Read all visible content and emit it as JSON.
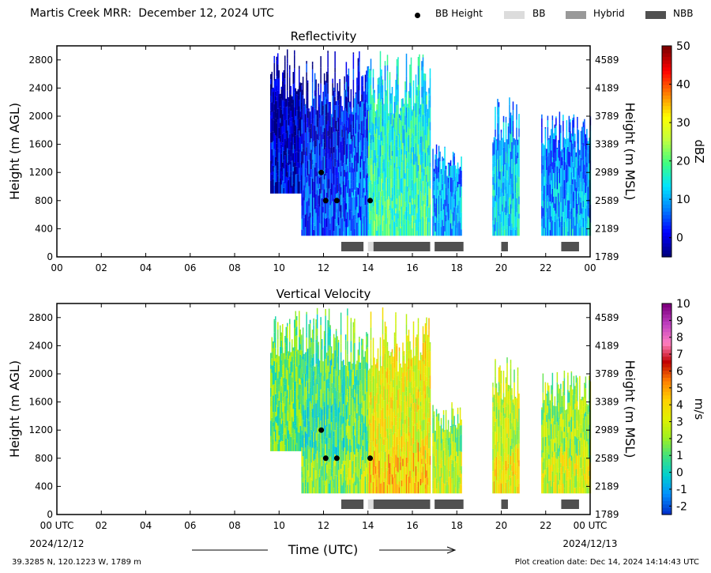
{
  "title": "Martis Creek MRR:  December 12, 2024 UTC",
  "legend": [
    {
      "label": "BB Height",
      "type": "dot",
      "color": "#000000"
    },
    {
      "label": "BB",
      "type": "swatch",
      "color": "#dcdcdc"
    },
    {
      "label": "Hybrid",
      "type": "swatch",
      "color": "#999999"
    },
    {
      "label": "NBB",
      "type": "swatch",
      "color": "#505050"
    }
  ],
  "chart_data": [
    {
      "type": "heatmap",
      "title": "Reflectivity",
      "xlabel": "",
      "ylabel": "Height (m AGL)",
      "ylabel_right": "Height (m MSL)",
      "xlim": [
        0,
        24
      ],
      "ylim": [
        0,
        3000
      ],
      "x_ticks": [
        "00",
        "02",
        "04",
        "06",
        "08",
        "10",
        "12",
        "14",
        "16",
        "18",
        "20",
        "22",
        "00"
      ],
      "y_ticks": [
        "0",
        "400",
        "800",
        "1200",
        "1600",
        "2000",
        "2400",
        "2800"
      ],
      "y_ticks_right": [
        "1789",
        "2189",
        "2589",
        "2989",
        "3389",
        "3789",
        "4189",
        "4589"
      ],
      "colorbar": {
        "label": "dBZ",
        "range": [
          -5,
          50
        ],
        "ticks": [
          "0",
          "10",
          "20",
          "30",
          "40",
          "50"
        ],
        "tick_values": [
          0,
          10,
          20,
          30,
          40,
          50
        ],
        "colors": [
          "#00007f",
          "#0000ff",
          "#0080ff",
          "#00e5ff",
          "#40ff80",
          "#c0ff40",
          "#ffff00",
          "#ff8000",
          "#ff0000",
          "#7f0000"
        ]
      },
      "echo_regions": [
        {
          "start": 9.6,
          "end": 11.0,
          "top": 2950,
          "bottom": 900,
          "level": 0.15
        },
        {
          "start": 11.0,
          "end": 13.0,
          "top": 2950,
          "bottom": 300,
          "level": 0.2
        },
        {
          "start": 13.0,
          "end": 14.0,
          "top": 2950,
          "bottom": 300,
          "level": 0.25
        },
        {
          "start": 14.0,
          "end": 16.8,
          "top": 2950,
          "bottom": 300,
          "level": 0.45
        },
        {
          "start": 16.9,
          "end": 18.2,
          "top": 1600,
          "bottom": 300,
          "level": 0.3
        },
        {
          "start": 19.6,
          "end": 20.8,
          "top": 2300,
          "bottom": 300,
          "level": 0.35
        },
        {
          "start": 21.8,
          "end": 24.0,
          "top": 2100,
          "bottom": 300,
          "level": 0.3
        }
      ],
      "bb_height": [
        {
          "x": 11.9,
          "y": 1200
        },
        {
          "x": 12.1,
          "y": 800
        },
        {
          "x": 12.6,
          "y": 800
        },
        {
          "x": 14.1,
          "y": 800
        }
      ],
      "bright_band": [
        {
          "start": 12.8,
          "end": 13.8,
          "kind": "NBB"
        },
        {
          "start": 14.0,
          "end": 14.25,
          "kind": "BB"
        },
        {
          "start": 14.25,
          "end": 16.8,
          "kind": "NBB"
        },
        {
          "start": 17.0,
          "end": 18.3,
          "kind": "NBB"
        },
        {
          "start": 20.0,
          "end": 20.3,
          "kind": "NBB"
        },
        {
          "start": 22.7,
          "end": 23.5,
          "kind": "NBB"
        }
      ]
    },
    {
      "type": "heatmap",
      "title": "Vertical Velocity",
      "xlabel": "Time (UTC)",
      "ylabel": "Height (m AGL)",
      "ylabel_right": "Height (m MSL)",
      "xlim": [
        0,
        24
      ],
      "ylim": [
        0,
        3000
      ],
      "x_ticks": [
        "00 UTC",
        "02",
        "04",
        "06",
        "08",
        "10",
        "12",
        "14",
        "16",
        "18",
        "20",
        "22",
        "00 UTC"
      ],
      "x_date_start": "2024/12/12",
      "x_date_end": "2024/12/13",
      "y_ticks": [
        "0",
        "400",
        "800",
        "1200",
        "1600",
        "2000",
        "2400",
        "2800"
      ],
      "y_ticks_right": [
        "1789",
        "2189",
        "2589",
        "2989",
        "3389",
        "3789",
        "4189",
        "4589"
      ],
      "colorbar": {
        "label": "m/s",
        "range": [
          -2.5,
          10
        ],
        "ticks": [
          "-2",
          "-1",
          "0",
          "1",
          "2",
          "3",
          "4",
          "5",
          "6",
          "7",
          "8",
          "9",
          "10"
        ],
        "tick_values": [
          -2,
          -1,
          0,
          1,
          2,
          3,
          4,
          5,
          6,
          7,
          8,
          9,
          10
        ],
        "colors": [
          "#0033cc",
          "#0090ff",
          "#00d0d0",
          "#40e080",
          "#a0f020",
          "#e0f000",
          "#ffd000",
          "#ff8000",
          "#c00000",
          "#ff80c0",
          "#c040c0",
          "#800080"
        ]
      },
      "echo_regions": [
        {
          "start": 9.6,
          "end": 11.0,
          "top": 2950,
          "bottom": 900,
          "level": 0.3
        },
        {
          "start": 11.0,
          "end": 13.0,
          "top": 2950,
          "bottom": 300,
          "level": 0.25
        },
        {
          "start": 13.0,
          "end": 14.0,
          "top": 2950,
          "bottom": 300,
          "level": 0.3
        },
        {
          "start": 14.0,
          "end": 16.8,
          "top": 2950,
          "bottom": 300,
          "level": 0.45
        },
        {
          "start": 16.9,
          "end": 18.2,
          "top": 1600,
          "bottom": 300,
          "level": 0.35
        },
        {
          "start": 19.6,
          "end": 20.8,
          "top": 2300,
          "bottom": 300,
          "level": 0.4
        },
        {
          "start": 21.8,
          "end": 24.0,
          "top": 2100,
          "bottom": 300,
          "level": 0.35
        }
      ],
      "bb_height": [
        {
          "x": 11.9,
          "y": 1200
        },
        {
          "x": 12.1,
          "y": 800
        },
        {
          "x": 12.6,
          "y": 800
        },
        {
          "x": 14.1,
          "y": 800
        }
      ],
      "bright_band": [
        {
          "start": 12.8,
          "end": 13.8,
          "kind": "NBB"
        },
        {
          "start": 14.0,
          "end": 14.25,
          "kind": "BB"
        },
        {
          "start": 14.25,
          "end": 16.8,
          "kind": "NBB"
        },
        {
          "start": 17.0,
          "end": 18.3,
          "kind": "NBB"
        },
        {
          "start": 20.0,
          "end": 20.3,
          "kind": "NBB"
        },
        {
          "start": 22.7,
          "end": 23.5,
          "kind": "NBB"
        }
      ]
    }
  ],
  "footer": {
    "location": "39.3285 N, 120.1223 W, 1789 m",
    "creation": "Plot creation date: Dec 14, 2024 14:14:43 UTC"
  }
}
